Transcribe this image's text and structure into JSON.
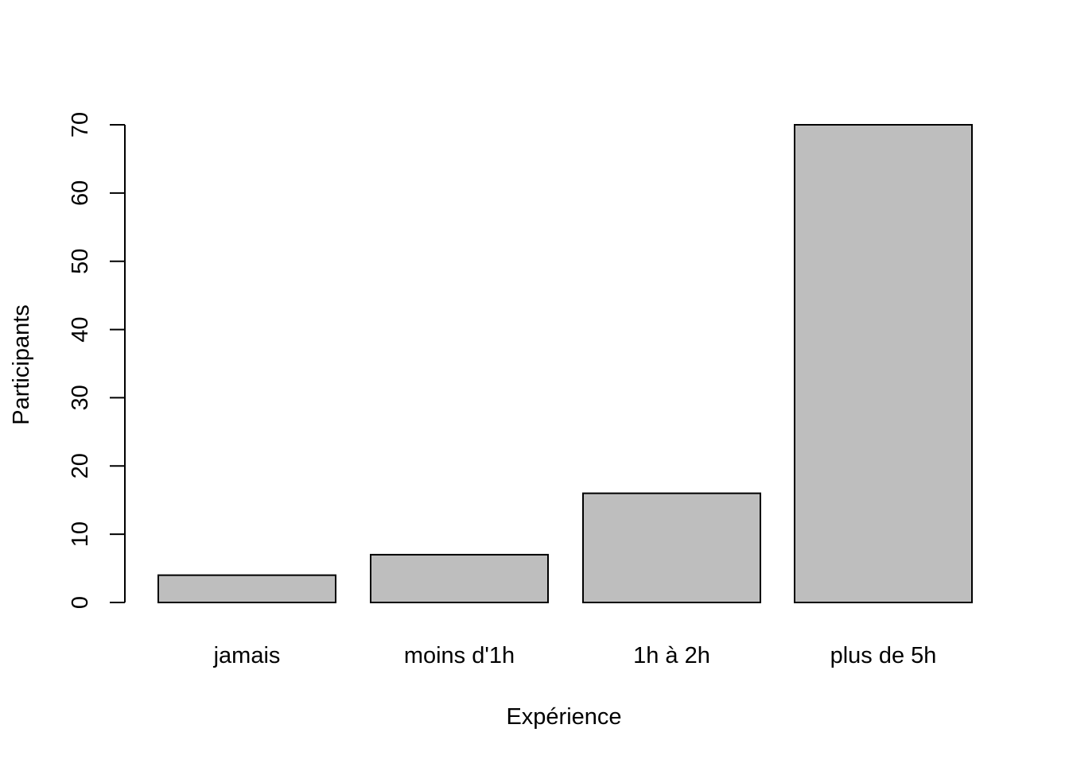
{
  "chart_data": {
    "type": "bar",
    "title": "",
    "xlabel": "Expérience",
    "ylabel": "Participants",
    "categories": [
      "jamais",
      "moins d'1h",
      "1h à 2h",
      "plus de 5h"
    ],
    "values": [
      4,
      7,
      16,
      70
    ],
    "ylim": [
      0,
      70
    ],
    "yticks": [
      0,
      10,
      20,
      30,
      40,
      50,
      60,
      70
    ],
    "grid": false,
    "legend": "none",
    "colors": {
      "bar_fill": "#bebebe",
      "bar_stroke": "#000000",
      "axis": "#000000",
      "background": "#ffffff"
    }
  }
}
